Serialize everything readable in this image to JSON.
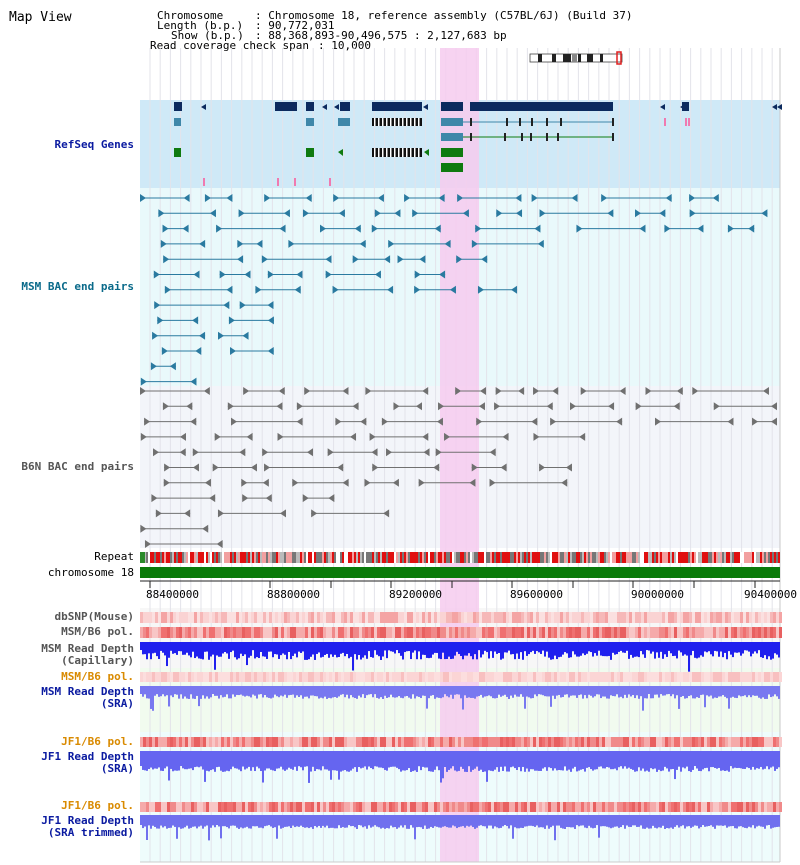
{
  "title": "Map View",
  "info": {
    "chromosome_key": "Chromosome",
    "chromosome_val": ": Chromosome 18, reference assembly (C57BL/6J) (Build 37)",
    "length_key": "Length (b.p.)",
    "length_val": ": 90,772,031",
    "show_key": "Show (b.p.)",
    "show_val": ": 88,368,893-90,496,575 : 2,127,683 bp",
    "coverage_key": "Read coverage check span",
    "coverage_val": ": 10,000"
  },
  "tracks": {
    "refseq": "RefSeq Genes",
    "msm_bac": "MSM BAC end pairs",
    "b6n_bac": "B6N BAC end pairs",
    "repeat": "Repeat",
    "chromosome": "chromosome 18",
    "dbsnp": "dbSNP(Mouse)",
    "msm_b6_pol": "MSM/B6 pol.",
    "msm_depth_cap": "MSM Read Depth\n(Capillary)",
    "msm_b6_pol2": "MSM/B6 pol.",
    "msm_depth_sra": "MSM Read Depth\n(SRA)",
    "jf1_b6_pol": "JF1/B6 pol.",
    "jf1_depth_sra": "JF1 Read Depth\n(SRA)",
    "jf1_b6_pol2": "JF1/B6 pol.",
    "jf1_depth_trim": "JF1 Read Depth\n(SRA trimmed)"
  },
  "axis": {
    "ticks": [
      "88400000",
      "88800000",
      "89200000",
      "89600000",
      "90000000",
      "90400000"
    ]
  },
  "colors": {
    "highlight": "#f6cbef",
    "refseq_bg": "#cfe9f7",
    "msm_bg": "#e9f9fb",
    "b6n_bg": "#f3f5fa",
    "gene_dark": "#0c2a5e",
    "gene_teal": "#3f87a9",
    "gene_green": "#0f7a0f",
    "msm_pair": "#2a7aa0",
    "b6n_pair": "#707070",
    "depth": "#3a3ae8",
    "pol_orange": "#d98a00",
    "lbl_blue": "#0a1aa0",
    "lbl_teal": "#0a6a8a"
  }
}
